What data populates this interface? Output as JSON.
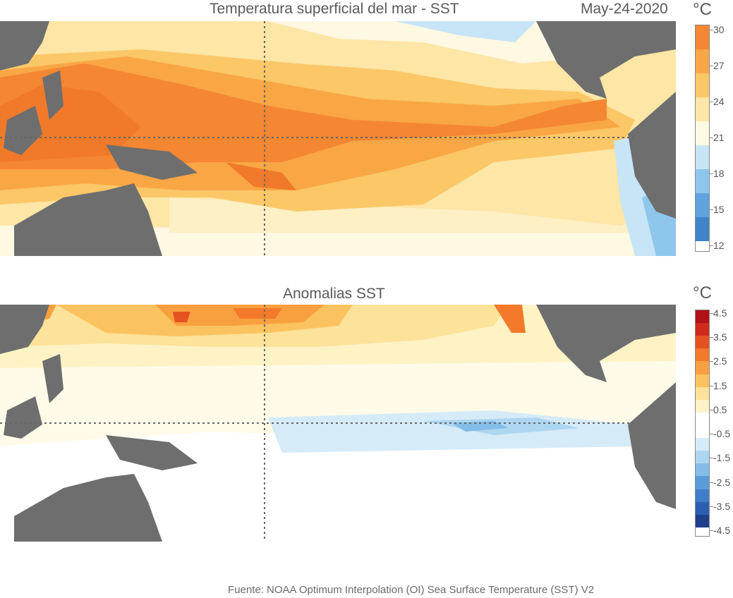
{
  "top_panel": {
    "title": "Temperatura superficial del mar - SST",
    "date": "May-24-2020",
    "unit": "°C",
    "colorbar": {
      "colors": [
        "#3d84c9",
        "#5fa3de",
        "#8fc6ec",
        "#c7e5f6",
        "#fff8e3",
        "#fde6a6",
        "#fbc767",
        "#f9a644",
        "#f58632"
      ],
      "tick_labels": [
        "30",
        "27",
        "24",
        "21",
        "18",
        "15",
        "12"
      ]
    }
  },
  "bottom_panel": {
    "title": "Anomalias SST",
    "unit": "°C",
    "colorbar": {
      "colors": [
        "#1f3f8a",
        "#2e5eb3",
        "#3f7cc9",
        "#5b9bd9",
        "#84bde8",
        "#add6f1",
        "#d5ebf8",
        "#ffffff",
        "#ffffff",
        "#fff3c6",
        "#fde299",
        "#fbc35f",
        "#f8a040",
        "#f27a2a",
        "#e6521f",
        "#cf2a1c",
        "#b01217"
      ],
      "tick_labels": [
        "4.5",
        "3.5",
        "2.5",
        "1.5",
        "0.5",
        "-0.5",
        "-1.5",
        "-2.5",
        "-3.5",
        "-4.5"
      ]
    }
  },
  "footer": {
    "source": "Fuente: NOAA Optimum Interpolation (OI) Sea Surface Temperature (SST) V2"
  }
}
